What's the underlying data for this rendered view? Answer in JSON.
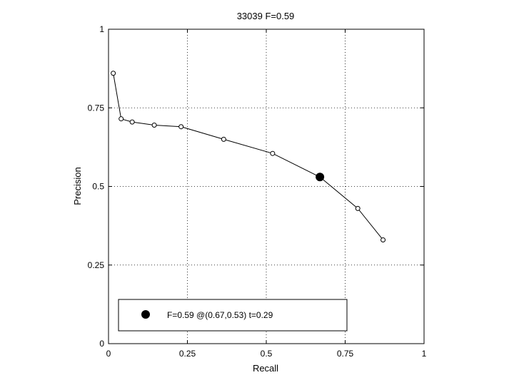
{
  "chart_data": {
    "type": "line",
    "title": "33039 F=0.59",
    "xlabel": "Recall",
    "ylabel": "Precision",
    "xlim": [
      0,
      1
    ],
    "ylim": [
      0,
      1
    ],
    "grid": true,
    "xticks": [
      0,
      0.25,
      0.5,
      0.75,
      1
    ],
    "yticks": [
      0,
      0.25,
      0.5,
      0.75,
      1
    ],
    "xtick_labels": [
      "0",
      "0.25",
      "0.5",
      "0.75",
      "1"
    ],
    "ytick_labels": [
      "0",
      "0.25",
      "0.5",
      "0.75",
      "1"
    ],
    "series": [
      {
        "points": [
          [
            0.015,
            0.86
          ],
          [
            0.04,
            0.715
          ],
          [
            0.075,
            0.705
          ],
          [
            0.145,
            0.695
          ],
          [
            0.23,
            0.69
          ],
          [
            0.365,
            0.65
          ],
          [
            0.52,
            0.605
          ],
          [
            0.67,
            0.53
          ],
          [
            0.79,
            0.43
          ],
          [
            0.87,
            0.33
          ]
        ],
        "color": "#000000"
      }
    ],
    "highlight_point": {
      "x": 0.67,
      "y": 0.53
    },
    "legend": {
      "text": "F=0.59 @(0.67,0.53) t=0.29",
      "placement": "bottom"
    }
  }
}
